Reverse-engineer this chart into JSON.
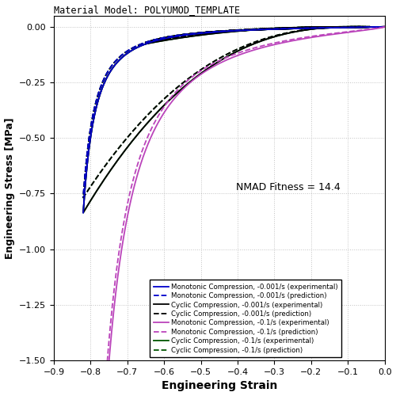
{
  "title": "Material Model: POLYUMOD_TEMPLATE",
  "xlabel": "Engineering Strain",
  "ylabel": "Engineering Stress [MPa]",
  "xlim": [
    -0.9,
    0.0
  ],
  "ylim": [
    -1.5,
    0.05
  ],
  "xticks": [
    -0.9,
    -0.8,
    -0.7,
    -0.6,
    -0.5,
    -0.4,
    -0.3,
    -0.2,
    -0.1,
    0.0
  ],
  "yticks": [
    -1.5,
    -1.25,
    -1.0,
    -0.75,
    -0.5,
    -0.25,
    0.0
  ],
  "nmad_text": "NMAD Fitness = 14.4",
  "colors": {
    "blue": "#0000CC",
    "black": "#000000",
    "purple": "#BB44BB",
    "dark_green": "#005500"
  },
  "background_color": "#FFFFFF",
  "grid_color": "#BBBBBB"
}
